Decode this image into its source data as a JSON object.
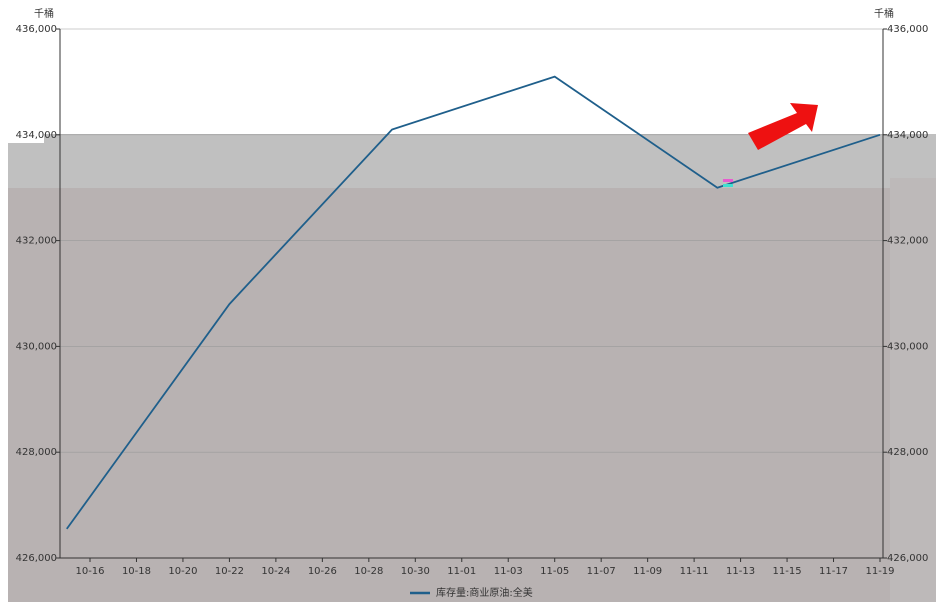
{
  "chart_data": {
    "type": "line",
    "y_unit": "千桶",
    "y2_unit": "千桶",
    "x": [
      "10-15",
      "10-22",
      "10-29",
      "11-05",
      "11-12",
      "11-19"
    ],
    "xticks": [
      "10-16",
      "10-18",
      "10-20",
      "10-22",
      "10-24",
      "10-26",
      "10-28",
      "10-30",
      "11-01",
      "11-03",
      "11-05",
      "11-07",
      "11-09",
      "11-11",
      "11-13",
      "11-15",
      "11-17",
      "11-19"
    ],
    "series": [
      {
        "name": "库存量:商业原油:全美",
        "color": "#1f5f8b",
        "values": [
          426550,
          430800,
          434100,
          435100,
          433000,
          434000
        ]
      }
    ],
    "ylim": [
      426000,
      436000
    ],
    "yticks": [
      {
        "value": 426000,
        "label": "426,000"
      },
      {
        "value": 428000,
        "label": "428,000"
      },
      {
        "value": 430000,
        "label": "430,000"
      },
      {
        "value": 432000,
        "label": "432,000"
      },
      {
        "value": 434000,
        "label": "434,000"
      },
      {
        "value": 436000,
        "label": "436,000"
      }
    ],
    "y2lim": [
      426000,
      436000
    ],
    "y2ticks": [
      {
        "value": 426000,
        "label": "426,000"
      },
      {
        "value": 428000,
        "label": "428,000"
      },
      {
        "value": 430000,
        "label": "430,000"
      },
      {
        "value": 432000,
        "label": "432,000"
      },
      {
        "value": 434000,
        "label": "434,000"
      },
      {
        "value": 436000,
        "label": "436,000"
      }
    ],
    "grid": true
  }
}
